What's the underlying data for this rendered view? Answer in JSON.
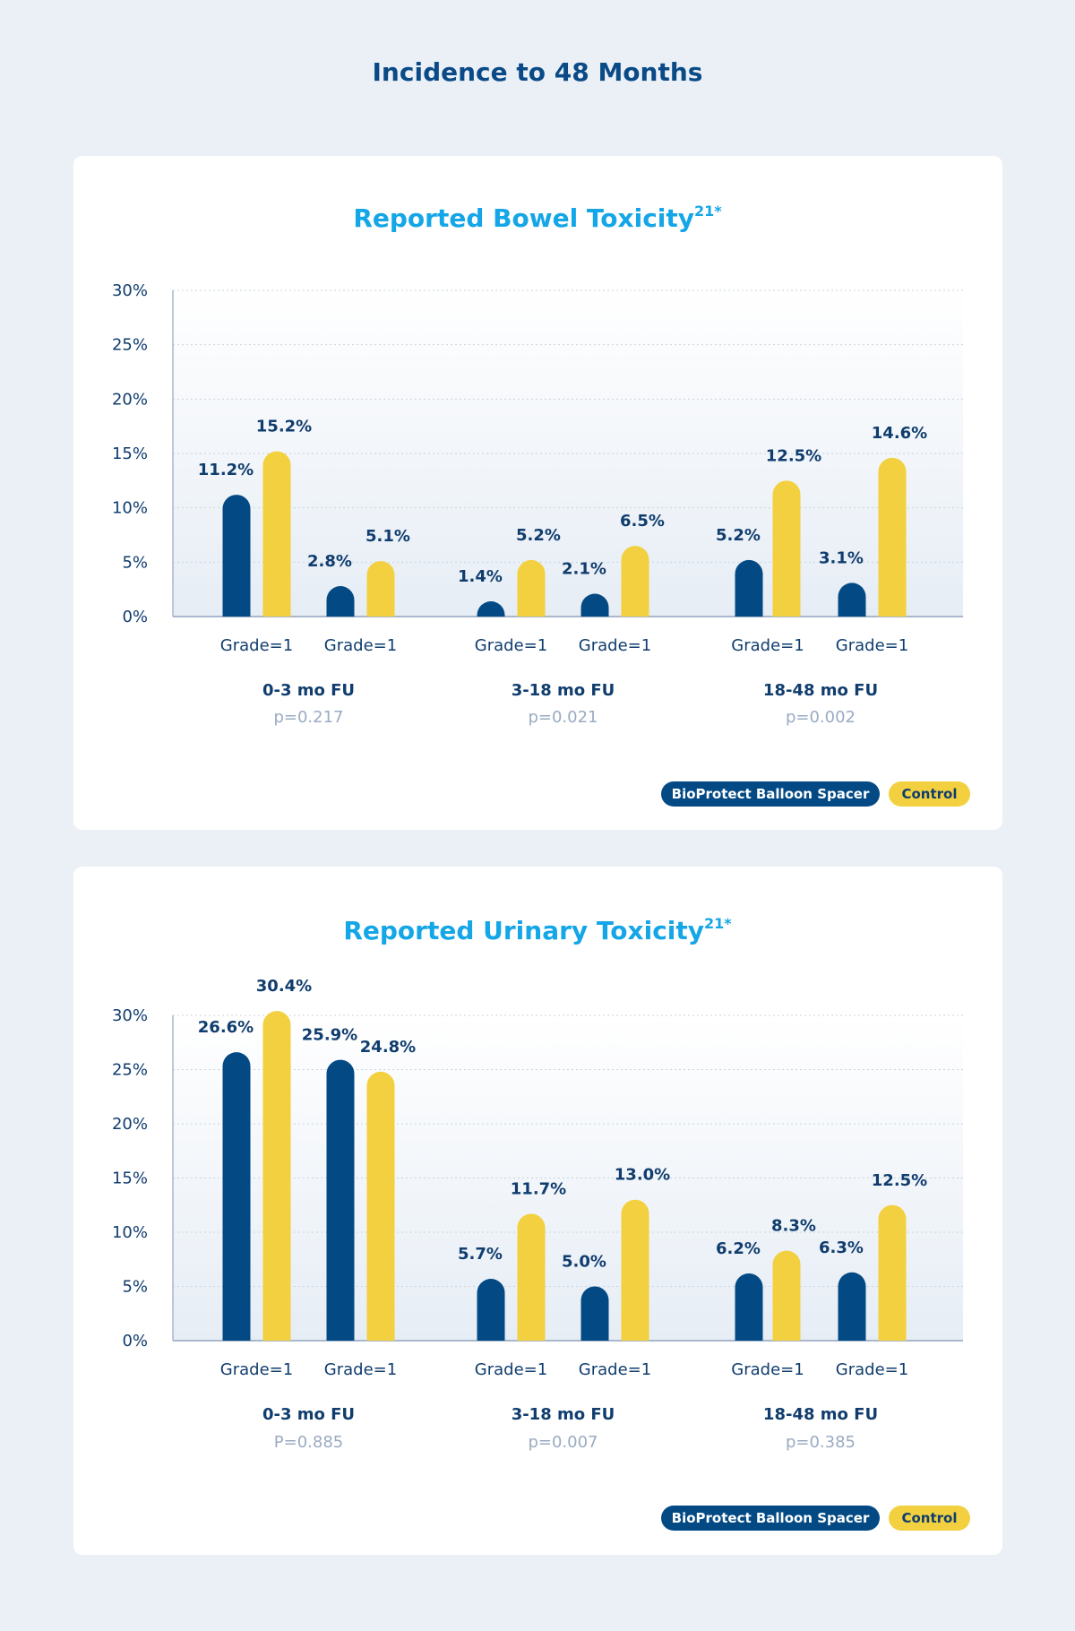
{
  "page_title": "Incidence to 48 Months",
  "colors": {
    "spacer": "#034a85",
    "control": "#f2d03f",
    "title": "#14a6e6",
    "text": "#103d6e",
    "pvalue": "#9aabc2"
  },
  "chart_data": [
    {
      "type": "bar",
      "title": "Reported Bowel Toxicity",
      "title_superscript": "21*",
      "ylim": [
        0,
        30
      ],
      "yticks": [
        "0%",
        "5%",
        "10%",
        "15%",
        "20%",
        "25%",
        "30%"
      ],
      "grid": true,
      "legend_position": "bottom-right",
      "legend": [
        "BioProtect Balloon Spacer",
        "Control"
      ],
      "groups": [
        {
          "period": "0-3 mo FU",
          "p": "p=0.217",
          "subgroups": [
            {
              "label": "Grade=1",
              "spacer": 11.2,
              "control": 15.2
            },
            {
              "label": "Grade=1",
              "spacer": 2.8,
              "control": 5.1
            }
          ]
        },
        {
          "period": "3-18 mo FU",
          "p": "p=0.021",
          "subgroups": [
            {
              "label": "Grade=1",
              "spacer": 1.4,
              "control": 5.2
            },
            {
              "label": "Grade=1",
              "spacer": 2.1,
              "control": 6.5
            }
          ]
        },
        {
          "period": "18-48 mo FU",
          "p": "p=0.002",
          "subgroups": [
            {
              "label": "Grade=1",
              "spacer": 5.2,
              "control": 12.5
            },
            {
              "label": "Grade=1",
              "spacer": 3.1,
              "control": 14.6
            }
          ]
        }
      ]
    },
    {
      "type": "bar",
      "title": "Reported Urinary Toxicity",
      "title_superscript": "21*",
      "ylim": [
        0,
        30
      ],
      "yticks": [
        "0%",
        "5%",
        "10%",
        "15%",
        "20%",
        "25%",
        "30%"
      ],
      "grid": true,
      "legend_position": "bottom-right",
      "legend": [
        "BioProtect Balloon Spacer",
        "Control"
      ],
      "groups": [
        {
          "period": "0-3 mo FU",
          "p": "P=0.885",
          "subgroups": [
            {
              "label": "Grade=1",
              "spacer": 26.6,
              "control": 30.4
            },
            {
              "label": "Grade=1",
              "spacer": 25.9,
              "control": 24.8
            }
          ]
        },
        {
          "period": "3-18 mo FU",
          "p": "p=0.007",
          "subgroups": [
            {
              "label": "Grade=1",
              "spacer": 5.7,
              "control": 11.7
            },
            {
              "label": "Grade=1",
              "spacer": 5.0,
              "control": 13.0
            }
          ]
        },
        {
          "period": "18-48 mo FU",
          "p": "p=0.385",
          "subgroups": [
            {
              "label": "Grade=1",
              "spacer": 6.2,
              "control": 8.3
            },
            {
              "label": "Grade=1",
              "spacer": 6.3,
              "control": 12.5
            }
          ]
        }
      ]
    }
  ]
}
